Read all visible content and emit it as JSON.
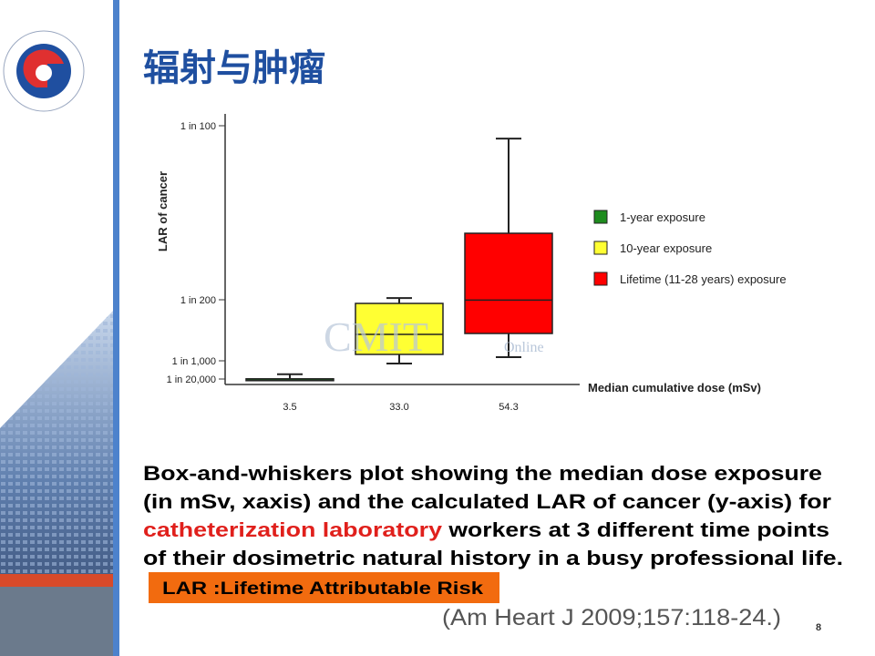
{
  "slide": {
    "title": "辐射与肿瘤",
    "caption": {
      "line1": "Box-and-whiskers plot showing the median dose exposure",
      "line2": "(in mSv, xaxis) and the calculated LAR of cancer (y-axis) for",
      "highlight": "catheterization laboratory",
      "line3": " workers at 3 different time points",
      "line4": "of their dosimetric natural history in a busy professional life."
    },
    "note": "LAR :Lifetime Attributable Risk",
    "citation": "(Am Heart J 2009;157:118-24.)",
    "page_number": "8",
    "watermark": "CMIT",
    "watermark_sub": "Online"
  },
  "chart_data": {
    "type": "box",
    "y_label": "LAR of cancer",
    "x_label": "Median cumulative dose (mSv)",
    "categories": [
      "3.5",
      "33.0",
      "54.3"
    ],
    "series": [
      {
        "name": "1-year exposure",
        "color": "#1e8c1e",
        "min": 4e-05,
        "q1": 4e-05,
        "median": 5e-05,
        "q3": 6e-05,
        "max": 0.0003
      },
      {
        "name": "10-year  exposure",
        "color": "#ffff33",
        "min": 0.00086,
        "q1": 0.00142,
        "median": 0.00273,
        "q3": 0.00476,
        "max": 0.00505
      },
      {
        "name": "Lifetime (11-28 years) exposure",
        "color": "#ff0000",
        "min": 0.00124,
        "q1": 0.00279,
        "median": 0.00498,
        "q3": 0.00691,
        "max": 0.00963
      }
    ],
    "ylim": [
      0,
      0.0103
    ],
    "yticks": [
      {
        "value": 5e-05,
        "label": "1 in 20,000"
      },
      {
        "value": 0.001,
        "label": "1 in 1,000"
      },
      {
        "value": 0.005,
        "label": "1 in 200"
      },
      {
        "value": 0.01,
        "label": "1 in 100"
      }
    ]
  }
}
